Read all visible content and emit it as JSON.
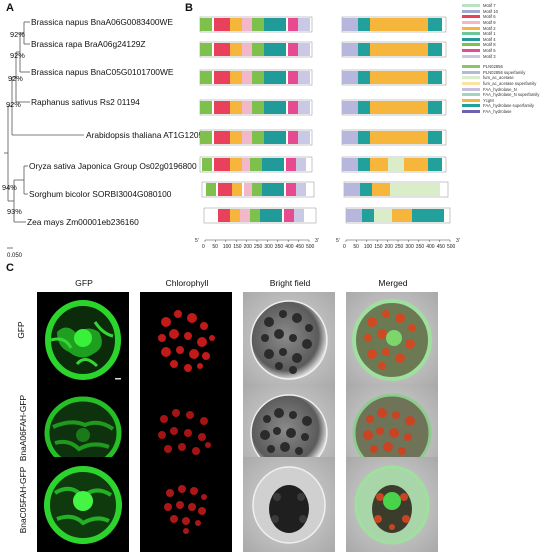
{
  "panels": {
    "A": "A",
    "B": "B",
    "C": "C"
  },
  "tree": {
    "labels": [
      "Brassica napus BnaA06G0083400WE",
      "Brassica rapa BraA06g24129Z",
      "Brassica napus BnaC05G0101700WE",
      "Raphanus sativus Rs2 01194",
      "Arabidopsis thaliana AT1G12050",
      "Oryza sativa Japonica Group Os02g0196800",
      "Sorghum bicolor SORBI3004G080100",
      "Zea mays Zm00001eb236160"
    ],
    "bootstraps": [
      "92%",
      "92%",
      "92%",
      "92%",
      "94%",
      "93%"
    ],
    "scale": "0.050"
  },
  "motif_legend": [
    "Motif 7",
    "Motif 10",
    "Motif 6",
    "Motif 9",
    "Motif 2",
    "Motif 1",
    "Motif 4",
    "Motif 8",
    "Motif 5",
    "Motif 3"
  ],
  "domain_legend": [
    "PLN02856",
    "PLN02856 superfamily",
    "fum_ac_acetase",
    "fum_ac_acetase superfamily",
    "FAA_hydrolase_N",
    "FAA_hydrolase_N superfamily",
    "YcgM",
    "FAA_hydrolase superfamily",
    "FAA_hydrolase"
  ],
  "colors": {
    "motifs": [
      "#b9e3c0",
      "#a2a8d6",
      "#e9415c",
      "#f2b7c8",
      "#f6b63c",
      "#6ec79a",
      "#219a9a",
      "#7dc14c",
      "#e84a8f",
      "#c9c9e6"
    ],
    "domains": [
      "#8bc664",
      "#b7b7dd",
      "#d9edc9",
      "#fbe3a1",
      "#c8bfe0",
      "#9fd6c2",
      "#f6b63c",
      "#22a09c",
      "#7060b0"
    ]
  },
  "axis": {
    "ticks": [
      "0",
      "50",
      "100",
      "150",
      "200",
      "250",
      "300",
      "350",
      "400",
      "450",
      "500"
    ],
    "start": "5'",
    "end": "3'"
  },
  "microscopy": {
    "columns": [
      "GFP",
      "Chlorophyll",
      "Bright field",
      "Merged"
    ],
    "rows": [
      "GFP",
      "BnaA06FAH-GFP",
      "BnaC05FAH-GFP"
    ]
  }
}
